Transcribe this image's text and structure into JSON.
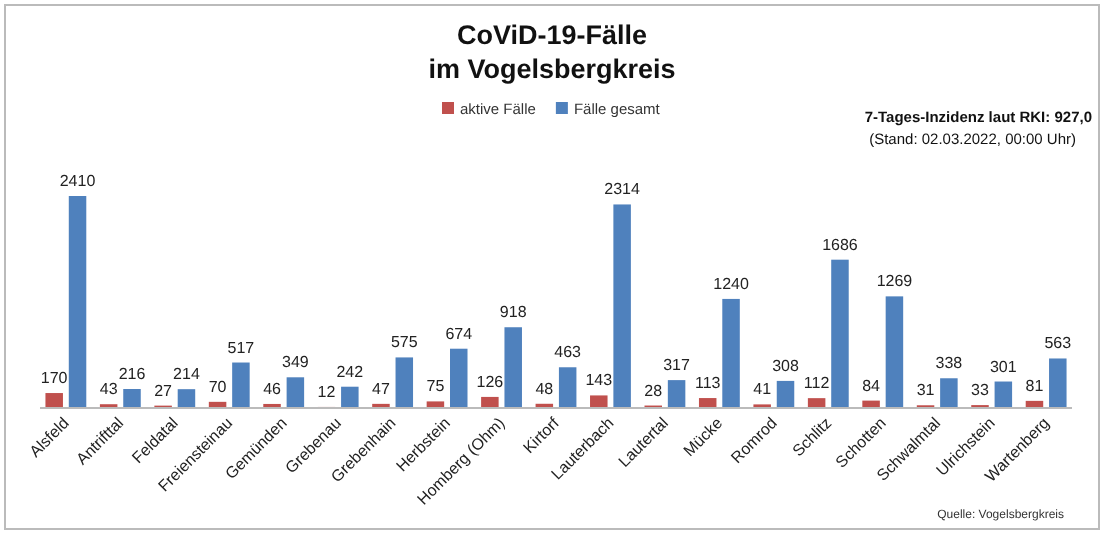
{
  "chart_data": {
    "type": "bar",
    "title": "CoViD-19-Fälle\nim Vogelsbergkreis",
    "categories": [
      "Alsfeld",
      "Antrifttal",
      "Feldatal",
      "Freiensteinau",
      "Gemünden",
      "Grebenau",
      "Grebenhain",
      "Herbstein",
      "Homberg (Ohm)",
      "Kirtorf",
      "Lauterbach",
      "Lautertal",
      "Mücke",
      "Romrod",
      "Schlitz",
      "Schotten",
      "Schwalmtal",
      "Ulrichstein",
      "Wartenberg"
    ],
    "series": [
      {
        "name": "aktive Fälle",
        "color": "#c0504d",
        "values": [
          170,
          43,
          27,
          70,
          46,
          12,
          47,
          75,
          126,
          48,
          143,
          28,
          113,
          41,
          112,
          84,
          31,
          33,
          81
        ]
      },
      {
        "name": "Fälle gesamt",
        "color": "#4f81bd",
        "values": [
          2410,
          216,
          214,
          517,
          349,
          242,
          575,
          674,
          918,
          463,
          2314,
          317,
          1240,
          308,
          1686,
          1269,
          338,
          301,
          563
        ]
      }
    ],
    "data_labels": true,
    "legend": "top",
    "annotations": [
      "7-Tages-Inzidenz laut RKI: 927,0",
      "(Stand: 02.03.2022, 00:00 Uhr)",
      "Quelle: Vogelsbergkreis"
    ]
  }
}
